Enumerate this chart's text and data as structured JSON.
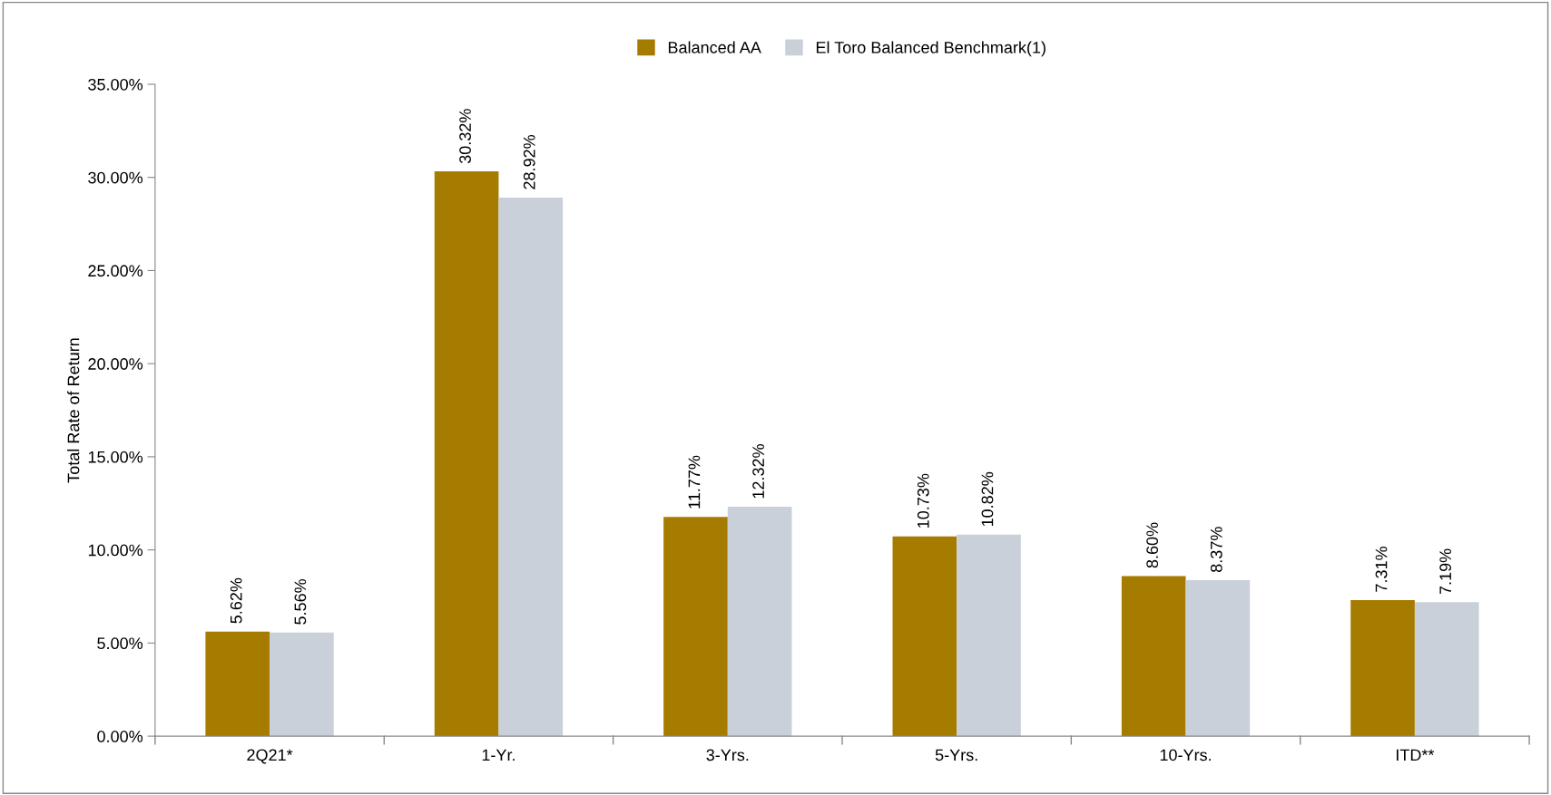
{
  "chart_data": {
    "type": "bar",
    "ylabel": "Total Rate of Return",
    "categories": [
      "2Q21*",
      "1-Yr.",
      "3-Yrs.",
      "5-Yrs.",
      "10-Yrs.",
      "ITD**"
    ],
    "series": [
      {
        "name": "Balanced AA",
        "color": "#a67c00",
        "values": [
          5.62,
          30.32,
          11.77,
          10.73,
          8.6,
          7.31
        ],
        "value_labels": [
          "5.62%",
          "30.32%",
          "11.77%",
          "10.73%",
          "8.60%",
          "7.31%"
        ]
      },
      {
        "name": "El Toro Balanced Benchmark(1)",
        "color": "#c9d0da",
        "values": [
          5.56,
          28.92,
          12.32,
          10.82,
          8.37,
          7.19
        ],
        "value_labels": [
          "5.56%",
          "28.92%",
          "12.32%",
          "10.82%",
          "8.37%",
          "7.19%"
        ]
      }
    ],
    "ylim": [
      0,
      35
    ],
    "yticks": [
      {
        "value": 0,
        "label": "0.00%"
      },
      {
        "value": 5,
        "label": "5.00%"
      },
      {
        "value": 10,
        "label": "10.00%"
      },
      {
        "value": 15,
        "label": "15.00%"
      },
      {
        "value": 20,
        "label": "20.00%"
      },
      {
        "value": 25,
        "label": "25.00%"
      },
      {
        "value": 30,
        "label": "30.00%"
      },
      {
        "value": 35,
        "label": "35.00%"
      }
    ],
    "grid": false,
    "legend": "top"
  }
}
